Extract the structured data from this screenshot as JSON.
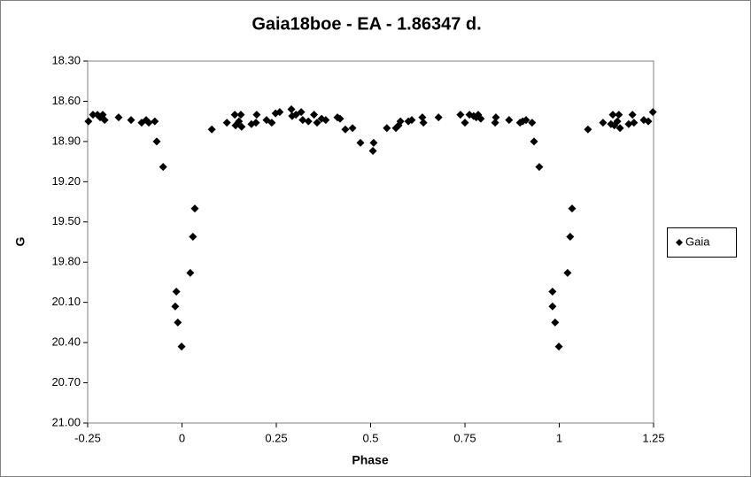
{
  "chart_data": {
    "type": "scatter",
    "title": "Gaia18boe - EA - 1.86347 d.",
    "x_label": "Phase",
    "y_label": "G",
    "xlim": [
      -0.25,
      1.25
    ],
    "xticks": [
      -0.25,
      0,
      0.25,
      0.5,
      0.75,
      1,
      1.25
    ],
    "ylim": [
      21.0,
      18.3
    ],
    "yticks": [
      {
        "value": 18.3,
        "label": "18.30"
      },
      {
        "value": 18.6,
        "label": "18.60"
      },
      {
        "value": 18.9,
        "label": "18.90"
      },
      {
        "value": 19.2,
        "label": "19.20"
      },
      {
        "value": 19.5,
        "label": "19.50"
      },
      {
        "value": 19.8,
        "label": "19.80"
      },
      {
        "value": 20.1,
        "label": "20.10"
      },
      {
        "value": 20.4,
        "label": "20.40"
      },
      {
        "value": 20.7,
        "label": "20.70"
      },
      {
        "value": 21.0,
        "label": "21.00"
      }
    ],
    "grid": false,
    "legend": "right",
    "series": [
      {
        "name": "Gaia",
        "color": "#000000",
        "x": [
          -0.248,
          -0.236,
          -0.224,
          -0.217,
          -0.21,
          -0.205,
          -0.168,
          -0.135,
          -0.107,
          -0.095,
          -0.088,
          -0.072,
          -0.067,
          -0.05,
          -0.015,
          -0.018,
          -0.011,
          -0.001,
          0.022,
          0.029,
          0.034,
          0.079,
          0.119,
          0.14,
          0.142,
          0.151,
          0.156,
          0.158,
          0.184,
          0.196,
          0.198,
          0.224,
          0.238,
          0.248,
          0.259,
          0.29,
          0.292,
          0.302,
          0.316,
          0.32,
          0.335,
          0.35,
          0.358,
          0.37,
          0.381,
          0.412,
          0.419,
          0.433,
          0.452,
          0.473,
          0.506,
          0.508,
          0.543,
          0.567,
          0.574,
          0.579,
          0.6,
          0.609,
          0.637,
          0.64,
          0.68,
          0.738,
          0.75,
          0.762,
          0.773,
          0.78,
          0.785,
          0.792,
          0.83,
          0.832,
          0.867,
          0.896,
          0.903,
          0.912,
          0.928,
          0.933,
          0.947,
          0.982,
          0.982,
          0.989,
          0.999,
          1.022,
          1.029,
          1.034,
          1.076,
          1.116,
          1.137,
          1.142,
          1.146,
          1.154,
          1.158,
          1.161,
          1.184,
          1.194,
          1.198,
          1.224,
          1.236,
          1.248
        ],
        "values": [
          18.75,
          18.7,
          18.7,
          18.72,
          18.7,
          18.74,
          18.72,
          18.74,
          18.76,
          18.74,
          18.76,
          18.75,
          18.9,
          19.09,
          20.02,
          20.13,
          20.25,
          20.43,
          19.88,
          19.61,
          19.4,
          18.81,
          18.76,
          18.7,
          18.78,
          18.75,
          18.7,
          18.79,
          18.77,
          18.76,
          18.7,
          18.74,
          18.76,
          18.69,
          18.68,
          18.66,
          18.71,
          18.7,
          18.68,
          18.74,
          18.75,
          18.7,
          18.76,
          18.73,
          18.74,
          18.72,
          18.73,
          18.81,
          18.8,
          18.91,
          18.97,
          18.91,
          18.8,
          18.8,
          18.78,
          18.75,
          18.75,
          18.74,
          18.72,
          18.76,
          18.72,
          18.7,
          18.76,
          18.7,
          18.71,
          18.72,
          18.7,
          18.73,
          18.76,
          18.72,
          18.74,
          18.76,
          18.75,
          18.74,
          18.76,
          18.9,
          19.09,
          20.02,
          20.13,
          20.25,
          20.43,
          19.88,
          19.61,
          19.4,
          18.81,
          18.76,
          18.77,
          18.7,
          18.78,
          18.75,
          18.7,
          18.8,
          18.77,
          18.7,
          18.76,
          18.74,
          18.75,
          18.68
        ]
      }
    ]
  }
}
